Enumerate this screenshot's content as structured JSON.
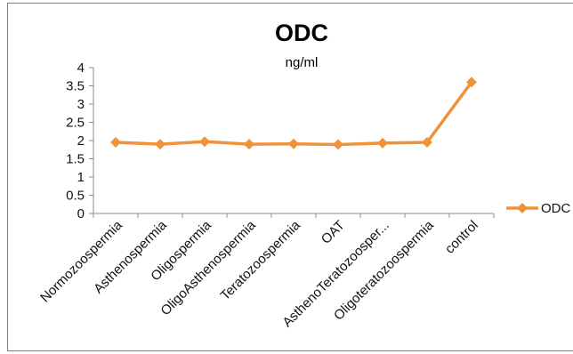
{
  "chart_data": {
    "type": "line",
    "title": "ODC",
    "subtitle": "ng/ml",
    "categories": [
      "Normozoospermia",
      "Asthenospermia",
      "Oligospermia",
      "OligoAsthenospermia",
      "Teratozoospermia",
      "OAT",
      "AsthenoTeratozoosper...",
      "Oligoteratozoospermia",
      "control"
    ],
    "series": [
      {
        "name": "ODC",
        "values": [
          1.95,
          1.9,
          1.97,
          1.9,
          1.91,
          1.89,
          1.93,
          1.95,
          3.6
        ],
        "color": "#f0923a",
        "marker": "diamond"
      }
    ],
    "y_ticks": [
      "0",
      "0.5",
      "1",
      "1.5",
      "2",
      "2.5",
      "3",
      "3.5",
      "4"
    ],
    "ylim": [
      0,
      4
    ],
    "grid": false,
    "legend_position": "right"
  }
}
